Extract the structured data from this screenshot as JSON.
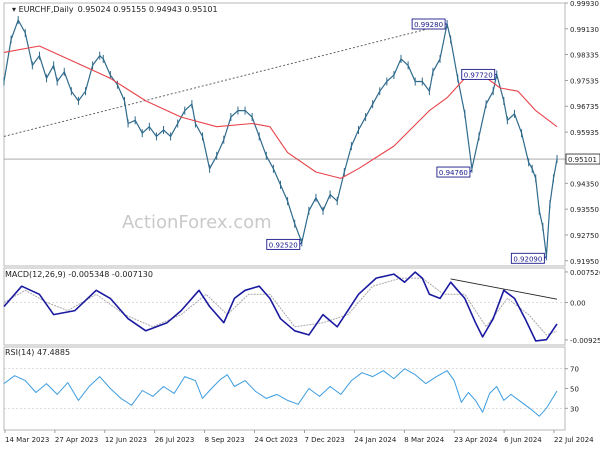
{
  "chart_data": {
    "type": "line",
    "symbol": "EURCHF",
    "timeframe": "Daily",
    "watermark": "ActionForex.com",
    "colors": {
      "price": "#2f6a8c",
      "ma": "#e8434a",
      "trendline": "#555555",
      "macd": "#1a1aa0",
      "signal": "#a9a9a9",
      "rsi": "#3d9de0",
      "level_line": "#7a7a7a",
      "label_border": "#1a1a8c"
    },
    "header": {
      "title": "EURCHF,Daily",
      "ohlc": "0.95024 0.95155 0.94943 0.95101"
    },
    "x_labels": [
      "14 Mar 2023",
      "27 Apr 2023",
      "12 Jun 2023",
      "26 Jul 2023",
      "8 Sep 2023",
      "24 Oct 2023",
      "7 Dec 2023",
      "24 Jan 2024",
      "8 Mar 2024",
      "23 Apr 2024",
      "6 Jun 2024",
      "22 Jul 2024"
    ],
    "price_panel": {
      "y_ticks": [
        "0.99930",
        "0.99130",
        "0.98335",
        "0.97535",
        "0.96735",
        "0.95935",
        "0.95101",
        "0.94350",
        "0.93550",
        "0.92750",
        "0.91950"
      ],
      "ylim": [
        0.9179,
        0.9993
      ],
      "current_price": "0.95101",
      "points": [
        [
          0,
          0.975
        ],
        [
          2,
          0.988
        ],
        [
          4,
          0.994
        ],
        [
          6,
          0.99
        ],
        [
          8,
          0.98
        ],
        [
          10,
          0.983
        ],
        [
          12,
          0.976
        ],
        [
          14,
          0.98
        ],
        [
          15,
          0.975
        ],
        [
          17,
          0.978
        ],
        [
          19,
          0.972
        ],
        [
          21,
          0.969
        ],
        [
          23,
          0.972
        ],
        [
          25,
          0.98
        ],
        [
          27,
          0.983
        ],
        [
          28,
          0.982
        ],
        [
          30,
          0.977
        ],
        [
          32,
          0.974
        ],
        [
          34,
          0.969
        ],
        [
          35,
          0.962
        ],
        [
          37,
          0.963
        ],
        [
          39,
          0.959
        ],
        [
          41,
          0.961
        ],
        [
          43,
          0.958
        ],
        [
          45,
          0.96
        ],
        [
          47,
          0.958
        ],
        [
          49,
          0.962
        ],
        [
          51,
          0.966
        ],
        [
          53,
          0.968
        ],
        [
          54,
          0.962
        ],
        [
          56,
          0.958
        ],
        [
          58,
          0.948
        ],
        [
          60,
          0.952
        ],
        [
          62,
          0.957
        ],
        [
          64,
          0.964
        ],
        [
          66,
          0.966
        ],
        [
          68,
          0.966
        ],
        [
          70,
          0.964
        ],
        [
          72,
          0.958
        ],
        [
          74,
          0.952
        ],
        [
          76,
          0.948
        ],
        [
          78,
          0.943
        ],
        [
          80,
          0.938
        ],
        [
          82,
          0.931
        ],
        [
          84,
          0.9252
        ],
        [
          86,
          0.935
        ],
        [
          88,
          0.939
        ],
        [
          90,
          0.935
        ],
        [
          92,
          0.94
        ],
        [
          94,
          0.938
        ],
        [
          96,
          0.947
        ],
        [
          98,
          0.955
        ],
        [
          100,
          0.96
        ],
        [
          102,
          0.964
        ],
        [
          104,
          0.968
        ],
        [
          106,
          0.972
        ],
        [
          108,
          0.975
        ],
        [
          110,
          0.977
        ],
        [
          112,
          0.982
        ],
        [
          114,
          0.98
        ],
        [
          116,
          0.975
        ],
        [
          118,
          0.975
        ],
        [
          120,
          0.972
        ],
        [
          121,
          0.978
        ],
        [
          123,
          0.982
        ],
        [
          125,
          0.9928
        ],
        [
          126,
          0.988
        ],
        [
          128,
          0.976
        ],
        [
          130,
          0.965
        ],
        [
          132,
          0.948
        ],
        [
          134,
          0.958
        ],
        [
          136,
          0.968
        ],
        [
          138,
          0.972
        ],
        [
          139,
          0.9772
        ],
        [
          141,
          0.969
        ],
        [
          142,
          0.963
        ],
        [
          144,
          0.965
        ],
        [
          146,
          0.959
        ],
        [
          148,
          0.95
        ],
        [
          149,
          0.948
        ],
        [
          150,
          0.945
        ],
        [
          151,
          0.935
        ],
        [
          152,
          0.93
        ],
        [
          153,
          0.9209
        ],
        [
          154,
          0.937
        ],
        [
          155,
          0.945
        ],
        [
          156,
          0.951
        ]
      ],
      "ma_points": [
        [
          0,
          0.984
        ],
        [
          10,
          0.986
        ],
        [
          20,
          0.981
        ],
        [
          30,
          0.976
        ],
        [
          40,
          0.969
        ],
        [
          50,
          0.964
        ],
        [
          60,
          0.961
        ],
        [
          70,
          0.962
        ],
        [
          75,
          0.961
        ],
        [
          80,
          0.953
        ],
        [
          88,
          0.947
        ],
        [
          95,
          0.945
        ],
        [
          100,
          0.948
        ],
        [
          110,
          0.955
        ],
        [
          120,
          0.966
        ],
        [
          125,
          0.97
        ],
        [
          130,
          0.976
        ],
        [
          135,
          0.977
        ],
        [
          140,
          0.973
        ],
        [
          145,
          0.972
        ],
        [
          150,
          0.966
        ],
        [
          156,
          0.961
        ]
      ],
      "trendline": [
        [
          0,
          0.958
        ],
        [
          125,
          0.9928
        ]
      ],
      "labels": [
        {
          "text": "0.92520",
          "x": 84,
          "y": 0.9252
        },
        {
          "text": "0.99280",
          "x": 125,
          "y": 0.9928
        },
        {
          "text": "0.97720",
          "x": 139,
          "y": 0.9772
        },
        {
          "text": "0.94760",
          "x": 132,
          "y": 0.9476
        },
        {
          "text": "0.92090",
          "x": 153,
          "y": 0.9209
        }
      ]
    },
    "macd_panel": {
      "title": "MACD(12,26,9) -0.005348 -0.007130",
      "y_ticks": [
        "0.007526",
        "0.00",
        "-0.009252"
      ],
      "ylim": [
        -0.0105,
        0.0085
      ],
      "macd_points": [
        [
          0,
          -0.001
        ],
        [
          5,
          0.004
        ],
        [
          10,
          0.002
        ],
        [
          14,
          -0.003
        ],
        [
          20,
          -0.002
        ],
        [
          26,
          0.003
        ],
        [
          30,
          0.001
        ],
        [
          35,
          -0.004
        ],
        [
          40,
          -0.007
        ],
        [
          46,
          -0.005
        ],
        [
          50,
          -0.002
        ],
        [
          55,
          0.003
        ],
        [
          58,
          -0.001
        ],
        [
          62,
          -0.005
        ],
        [
          65,
          0.001
        ],
        [
          68,
          0.003
        ],
        [
          72,
          0.004
        ],
        [
          75,
          0.001
        ],
        [
          78,
          -0.004
        ],
        [
          82,
          -0.007
        ],
        [
          86,
          -0.008
        ],
        [
          90,
          -0.003
        ],
        [
          94,
          -0.006
        ],
        [
          97,
          -0.002
        ],
        [
          100,
          0.002
        ],
        [
          105,
          0.006
        ],
        [
          110,
          0.007
        ],
        [
          113,
          0.005
        ],
        [
          116,
          0.0075
        ],
        [
          118,
          0.006
        ],
        [
          120,
          0.002
        ],
        [
          123,
          0.001
        ],
        [
          126,
          0.005
        ],
        [
          128,
          0.003
        ],
        [
          130,
          0.001
        ],
        [
          133,
          -0.005
        ],
        [
          135,
          -0.0085
        ],
        [
          138,
          -0.004
        ],
        [
          141,
          0.003
        ],
        [
          144,
          0.001
        ],
        [
          147,
          -0.004
        ],
        [
          150,
          -0.0095
        ],
        [
          153,
          -0.0092
        ],
        [
          156,
          -0.0053
        ]
      ],
      "signal_points": [
        [
          0,
          0.0
        ],
        [
          6,
          0.003
        ],
        [
          12,
          0.0
        ],
        [
          18,
          -0.002
        ],
        [
          26,
          0.002
        ],
        [
          34,
          -0.003
        ],
        [
          42,
          -0.006
        ],
        [
          50,
          -0.003
        ],
        [
          57,
          0.002
        ],
        [
          63,
          -0.003
        ],
        [
          69,
          0.002
        ],
        [
          75,
          0.002
        ],
        [
          82,
          -0.006
        ],
        [
          90,
          -0.005
        ],
        [
          97,
          -0.003
        ],
        [
          104,
          0.004
        ],
        [
          112,
          0.006
        ],
        [
          118,
          0.006
        ],
        [
          124,
          0.002
        ],
        [
          130,
          0.002
        ],
        [
          136,
          -0.006
        ],
        [
          142,
          0.001
        ],
        [
          148,
          -0.003
        ],
        [
          153,
          -0.008
        ],
        [
          156,
          -0.0071
        ]
      ],
      "trendline": [
        [
          126,
          0.0058
        ],
        [
          156,
          0.0008
        ]
      ]
    },
    "rsi_panel": {
      "title": "RSI(14) 47.4885",
      "y_ticks": [
        "70",
        "50",
        "30"
      ],
      "ylim": [
        8,
        92
      ],
      "levels": [
        70,
        30
      ],
      "points": [
        [
          0,
          55
        ],
        [
          3,
          63
        ],
        [
          6,
          58
        ],
        [
          9,
          46
        ],
        [
          12,
          55
        ],
        [
          15,
          44
        ],
        [
          18,
          56
        ],
        [
          21,
          38
        ],
        [
          24,
          52
        ],
        [
          27,
          62
        ],
        [
          30,
          50
        ],
        [
          33,
          40
        ],
        [
          36,
          33
        ],
        [
          39,
          48
        ],
        [
          42,
          42
        ],
        [
          45,
          52
        ],
        [
          48,
          45
        ],
        [
          51,
          62
        ],
        [
          54,
          58
        ],
        [
          56,
          40
        ],
        [
          58,
          48
        ],
        [
          61,
          59
        ],
        [
          63,
          64
        ],
        [
          65,
          52
        ],
        [
          68,
          58
        ],
        [
          71,
          47
        ],
        [
          74,
          40
        ],
        [
          77,
          44
        ],
        [
          80,
          38
        ],
        [
          83,
          34
        ],
        [
          86,
          50
        ],
        [
          89,
          42
        ],
        [
          92,
          52
        ],
        [
          95,
          44
        ],
        [
          98,
          58
        ],
        [
          101,
          66
        ],
        [
          104,
          62
        ],
        [
          107,
          68
        ],
        [
          110,
          60
        ],
        [
          113,
          70
        ],
        [
          116,
          64
        ],
        [
          119,
          55
        ],
        [
          122,
          62
        ],
        [
          125,
          68
        ],
        [
          127,
          58
        ],
        [
          129,
          36
        ],
        [
          131,
          46
        ],
        [
          133,
          38
        ],
        [
          135,
          26
        ],
        [
          137,
          45
        ],
        [
          139,
          52
        ],
        [
          141,
          38
        ],
        [
          143,
          44
        ],
        [
          146,
          36
        ],
        [
          149,
          28
        ],
        [
          151,
          22
        ],
        [
          153,
          30
        ],
        [
          156,
          47.5
        ]
      ]
    }
  }
}
